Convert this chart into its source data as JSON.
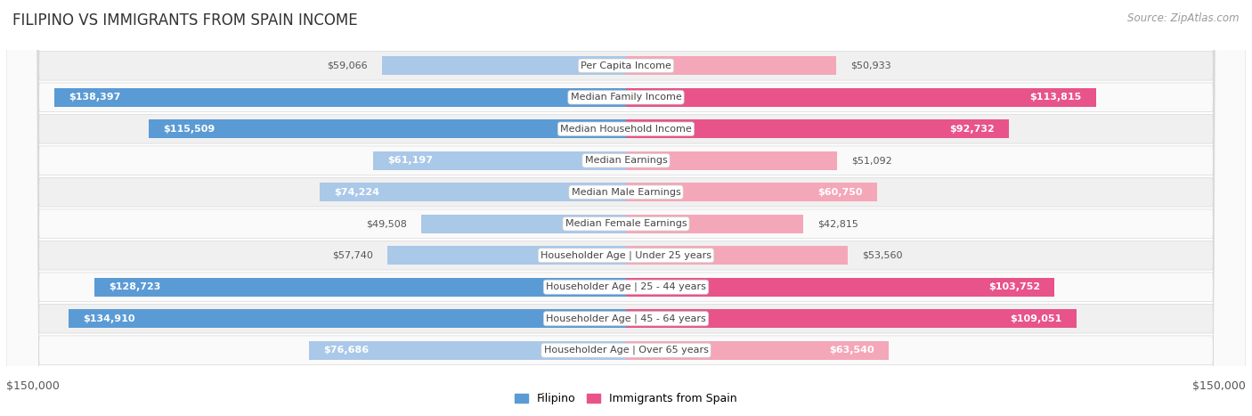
{
  "title": "FILIPINO VS IMMIGRANTS FROM SPAIN INCOME",
  "source": "Source: ZipAtlas.com",
  "max_value": 150000,
  "filipino_color_light": "#aac8e8",
  "filipino_color_dark": "#5b9bd5",
  "spain_color_light": "#f4a7b9",
  "spain_color_dark": "#e8538a",
  "row_bg_odd": "#f0f0f0",
  "row_bg_even": "#fafafa",
  "categories": [
    "Per Capita Income",
    "Median Family Income",
    "Median Household Income",
    "Median Earnings",
    "Median Male Earnings",
    "Median Female Earnings",
    "Householder Age | Under 25 years",
    "Householder Age | 25 - 44 years",
    "Householder Age | 45 - 64 years",
    "Householder Age | Over 65 years"
  ],
  "filipino_values": [
    59066,
    138397,
    115509,
    61197,
    74224,
    49508,
    57740,
    128723,
    134910,
    76686
  ],
  "spain_values": [
    50933,
    113815,
    92732,
    51092,
    60750,
    42815,
    53560,
    103752,
    109051,
    63540
  ],
  "filipino_labels": [
    "$59,066",
    "$138,397",
    "$115,509",
    "$61,197",
    "$74,224",
    "$49,508",
    "$57,740",
    "$128,723",
    "$134,910",
    "$76,686"
  ],
  "spain_labels": [
    "$50,933",
    "$113,815",
    "$92,732",
    "$51,092",
    "$60,750",
    "$42,815",
    "$53,560",
    "$103,752",
    "$109,051",
    "$63,540"
  ],
  "xlabel_left": "$150,000",
  "xlabel_right": "$150,000",
  "legend_filipino": "Filipino",
  "legend_spain": "Immigrants from Spain",
  "title_fontsize": 12,
  "source_fontsize": 8.5,
  "tick_fontsize": 9,
  "bar_label_fontsize": 8,
  "category_fontsize": 8,
  "legend_fontsize": 9,
  "inside_label_threshold": 60000,
  "dark_threshold": 90000
}
